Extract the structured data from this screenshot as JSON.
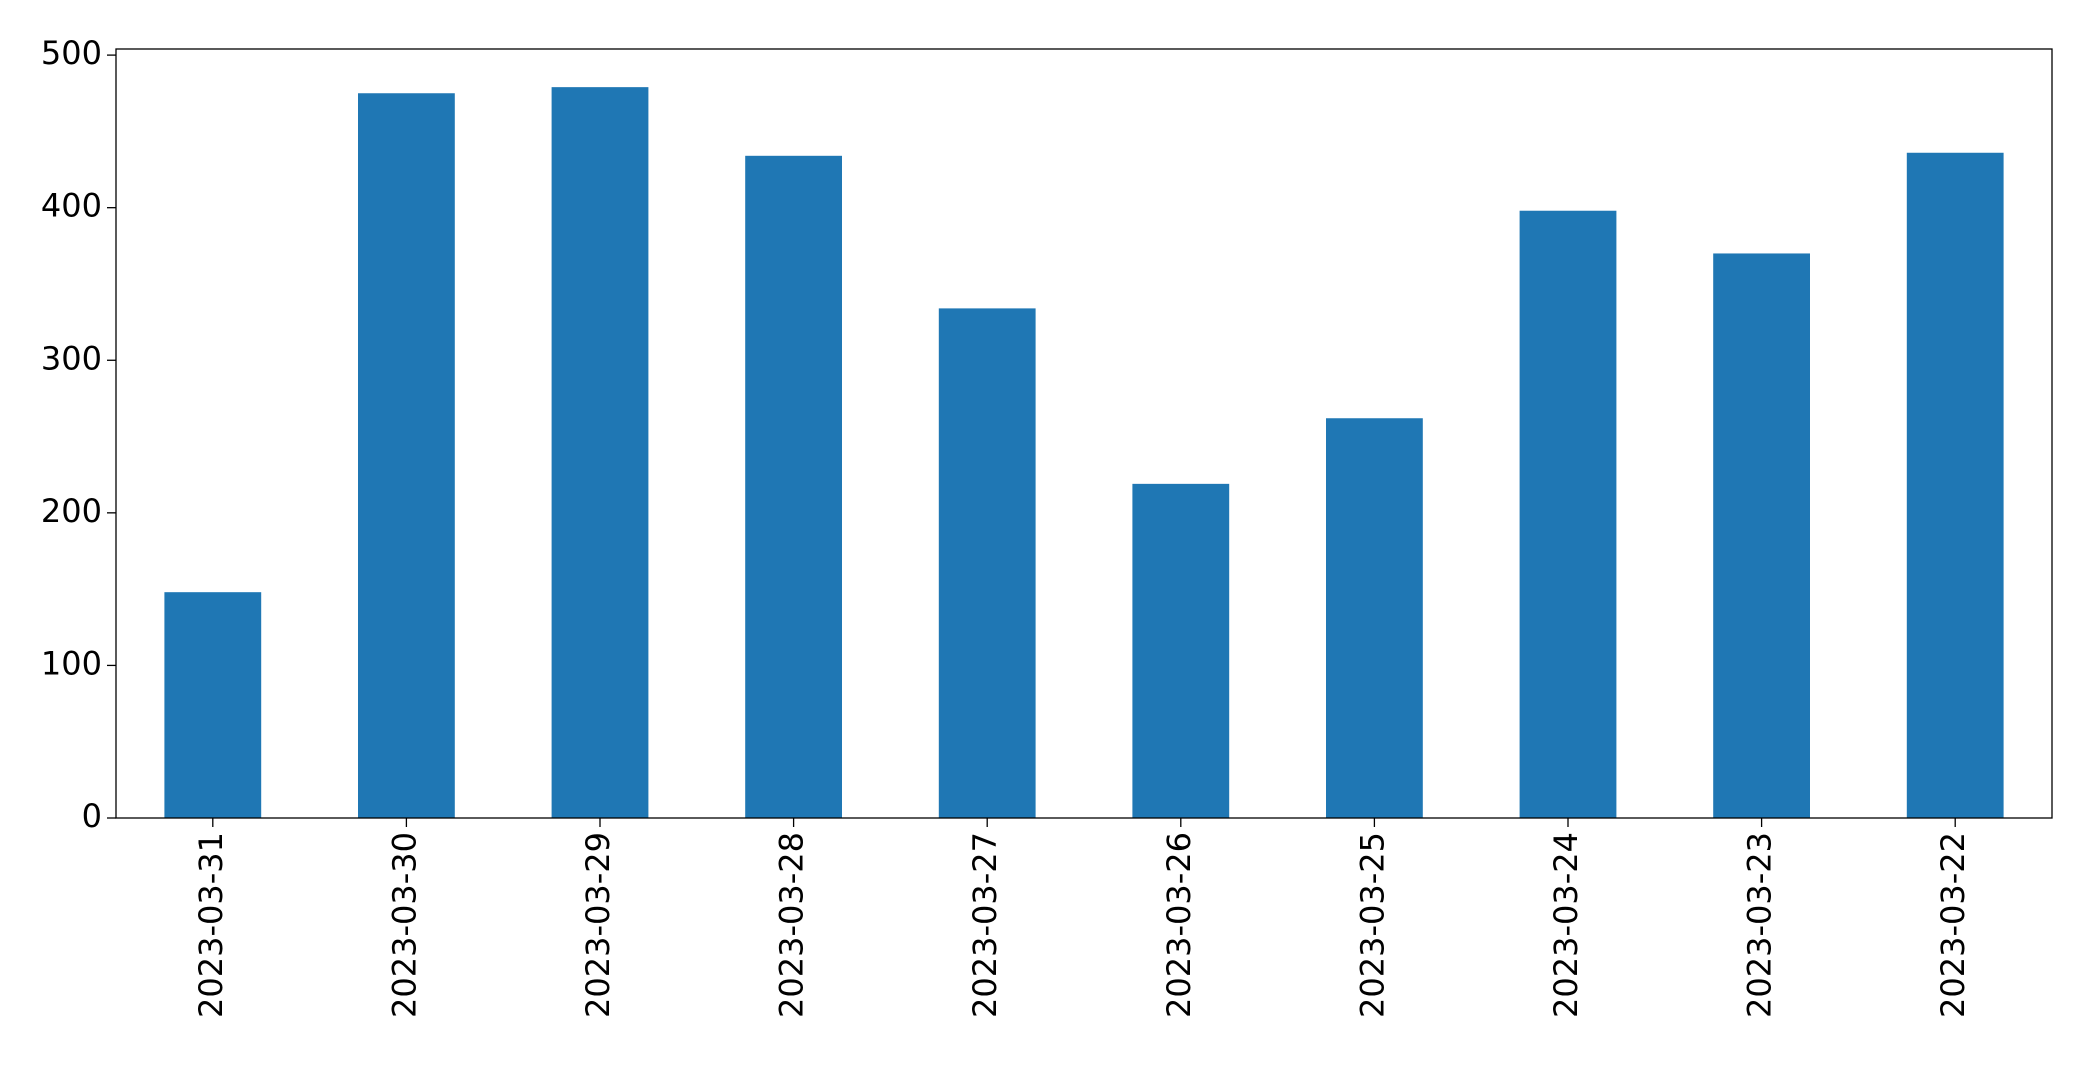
{
  "chart_data": {
    "type": "bar",
    "categories": [
      "2023-03-31",
      "2023-03-30",
      "2023-03-29",
      "2023-03-28",
      "2023-03-27",
      "2023-03-26",
      "2023-03-25",
      "2023-03-24",
      "2023-03-23",
      "2023-03-22"
    ],
    "values": [
      148,
      475,
      479,
      434,
      334,
      219,
      262,
      398,
      370,
      436
    ],
    "color": "#1f77b4",
    "ylim": [
      0,
      504
    ],
    "yticks": [
      0,
      100,
      200,
      300,
      400,
      500
    ],
    "grid": false
  }
}
